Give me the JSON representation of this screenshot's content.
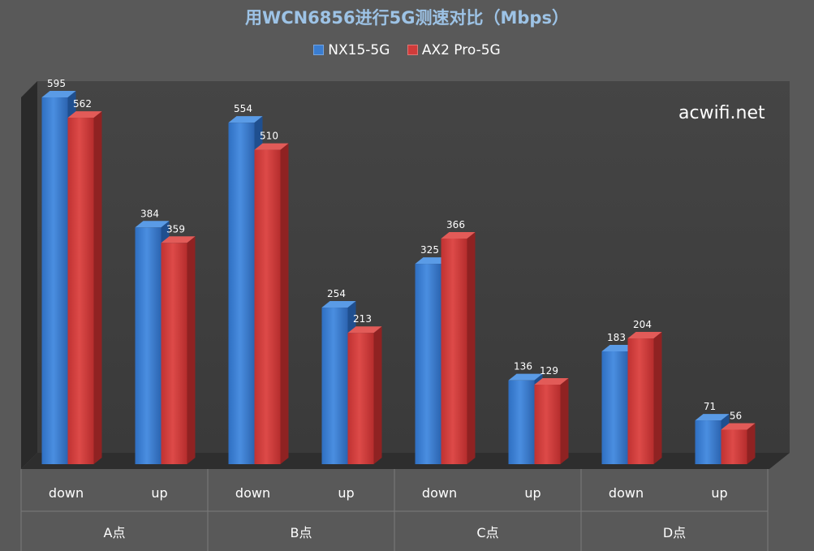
{
  "chart_data": {
    "type": "bar",
    "title": "用WCN6856进行5G测速对比（Mbps）",
    "groups": [
      "A点",
      "B点",
      "C点",
      "D点"
    ],
    "categories": [
      "down",
      "up",
      "down",
      "up",
      "down",
      "up",
      "down",
      "up"
    ],
    "series": [
      {
        "name": "NX15-5G",
        "color": "#3a7dd1",
        "values": [
          595,
          384,
          554,
          254,
          325,
          136,
          183,
          71
        ]
      },
      {
        "name": "AX2 Pro-5G",
        "color": "#d03b3a",
        "values": [
          562,
          359,
          510,
          213,
          366,
          129,
          204,
          56
        ]
      }
    ],
    "ylim": [
      0,
      620
    ],
    "grid": false,
    "legend": "top"
  },
  "watermark": "acwifi.net"
}
